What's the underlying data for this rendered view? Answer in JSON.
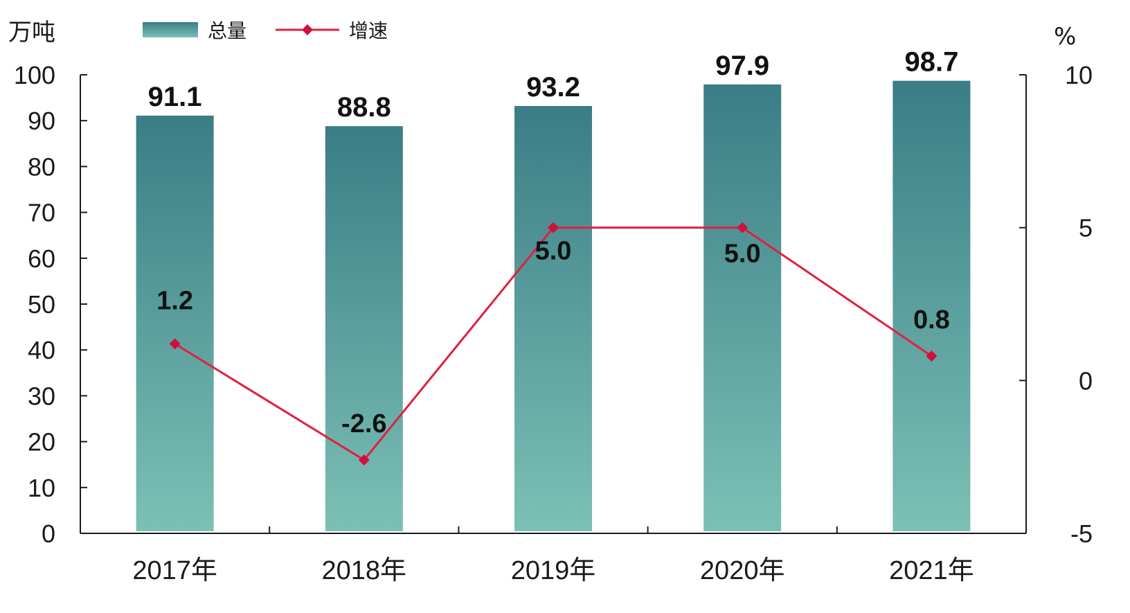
{
  "chart_data": {
    "type": "bar",
    "categories": [
      "2017年",
      "2018年",
      "2019年",
      "2020年",
      "2021年"
    ],
    "series": [
      {
        "name": "总量",
        "type": "bar",
        "axis": "left",
        "values": [
          91.1,
          88.8,
          93.2,
          97.9,
          98.7
        ],
        "labels": [
          "91.1",
          "88.8",
          "93.2",
          "97.9",
          "98.7"
        ]
      },
      {
        "name": "增速",
        "type": "line",
        "axis": "right",
        "values": [
          1.2,
          -2.6,
          5.0,
          5.0,
          0.8
        ],
        "labels": [
          "1.2",
          "-2.6",
          "5.0",
          "5.0",
          "0.8"
        ]
      }
    ],
    "y_left": {
      "unit": "万吨",
      "ylim": [
        0,
        100
      ],
      "ticks": [
        "0",
        "10",
        "20",
        "30",
        "40",
        "50",
        "60",
        "70",
        "80",
        "90",
        "100"
      ]
    },
    "y_right": {
      "unit": "%",
      "ylim": [
        -5,
        10
      ],
      "ticks": [
        "-5",
        "0",
        "5",
        "10"
      ]
    },
    "legend_position": "top-left",
    "grid": false
  },
  "colors": {
    "bar_top": "#3a7d86",
    "bar_bottom": "#7cc0b5",
    "line": "#e02040",
    "marker": "#d0103a",
    "axis": "#1a1a1a"
  }
}
